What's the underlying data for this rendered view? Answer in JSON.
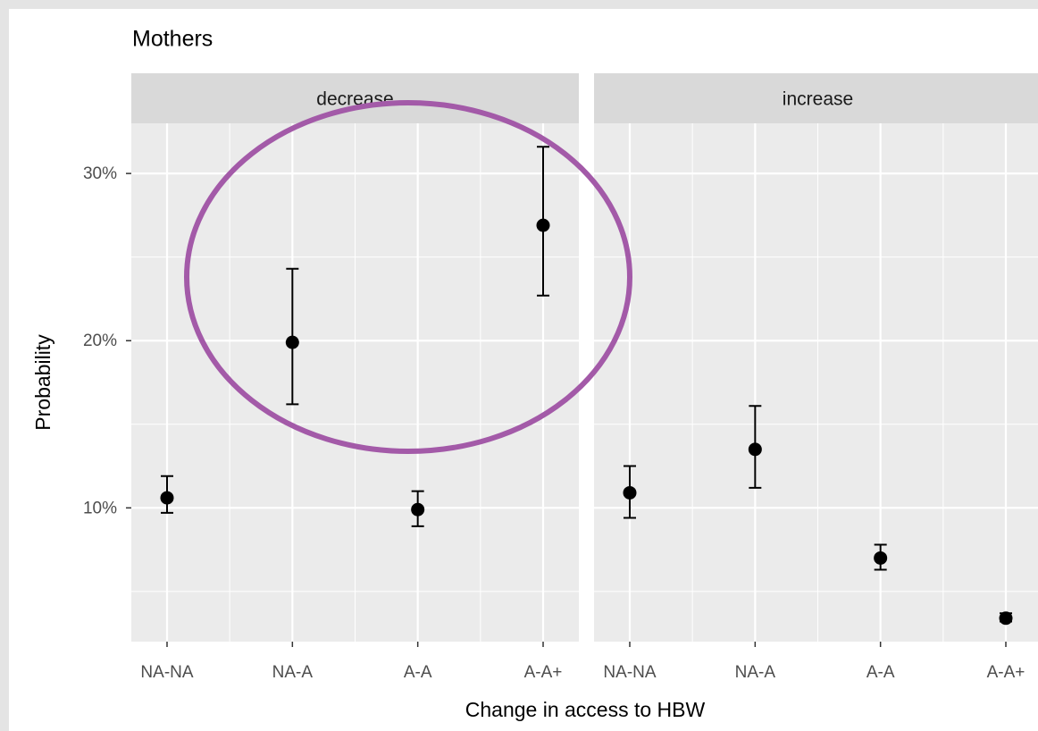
{
  "chart_data": {
    "type": "pointrange",
    "title": "Mothers",
    "x_label": "Change in access to HBW",
    "y_label": "Probability",
    "ylim": [
      2,
      33
    ],
    "yticks": [
      {
        "value": 10,
        "label": "10%"
      },
      {
        "value": 20,
        "label": "20%"
      },
      {
        "value": 30,
        "label": "30%"
      }
    ],
    "minor_yticks": [
      5,
      15,
      25
    ],
    "grid": true,
    "color": "#000000",
    "panels": [
      {
        "title": "decrease",
        "categories": [
          "NA-NA",
          "NA-A",
          "A-A",
          "A-A+"
        ],
        "values": [
          10.6,
          19.9,
          9.9,
          26.9
        ],
        "lower": [
          9.7,
          16.2,
          8.9,
          22.7
        ],
        "upper": [
          11.9,
          24.3,
          11.0,
          31.6
        ]
      },
      {
        "title": "increase",
        "categories": [
          "NA-NA",
          "NA-A",
          "A-A",
          "A-A+"
        ],
        "values": [
          10.9,
          13.5,
          7.0,
          3.4
        ],
        "lower": [
          9.4,
          11.2,
          6.3,
          3.2
        ],
        "upper": [
          12.5,
          16.1,
          7.8,
          3.7
        ]
      }
    ]
  }
}
